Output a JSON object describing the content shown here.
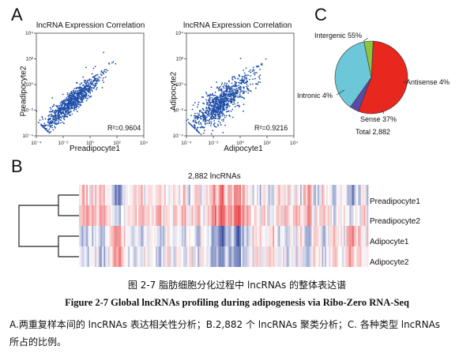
{
  "figure": {
    "panel_a": "A",
    "panel_b": "B",
    "panel_c": "C",
    "caption_title_cn": "图 2-7 脂肪细胞分化过程中 lncRNAs 的整体表达谱",
    "caption_title_en": "Figure 2-7 Global lncRNAs profiling during adipogenesis via Ribo-Zero RNA-Seq",
    "caption_body_line1": "A.两重复样本间的 lncRNAs 表达相关性分析；B.2,882 个 lncRNAs 聚类分析；C. 各种类型 lncRNAs",
    "caption_body_line2": "所占的比例。"
  },
  "chart_data": [
    {
      "type": "scatter",
      "title": "lncRNA Expression Correlation",
      "xlabel": "Preadipocyte1",
      "ylabel": "Preadipocyte2",
      "x_scale": "log",
      "y_scale": "log",
      "xlim": [
        0.0001,
        10000
      ],
      "ylim": [
        0.0001,
        10000
      ],
      "x_ticks": [
        "10⁻⁴",
        "10⁻²",
        "10⁰",
        "10²",
        "10⁴"
      ],
      "y_ticks": [
        "10⁻⁴",
        "10⁻²",
        "10⁰",
        "10²",
        "10⁴"
      ],
      "annotation": "R²=0.9604",
      "r2": 0.9604,
      "color": "#1f4fa8"
    },
    {
      "type": "scatter",
      "title": "lncRNA Expression Correlation",
      "xlabel": "Adipocyte1",
      "ylabel": "Adipocyte2",
      "x_scale": "log",
      "y_scale": "log",
      "xlim": [
        0.0001,
        10000
      ],
      "ylim": [
        0.0001,
        10000
      ],
      "x_ticks": [
        "10⁻⁴",
        "10⁻²",
        "10⁰",
        "10²",
        "10⁴"
      ],
      "y_ticks": [
        "10⁻⁴",
        "10⁻²",
        "10⁰",
        "10²",
        "10⁴"
      ],
      "annotation": "R²=0.9216",
      "r2": 0.9216,
      "color": "#1f4fa8"
    },
    {
      "type": "heatmap",
      "title": "2,882 lncRNAs",
      "rows": [
        "Preadipocyte1",
        "Preadipocyte2",
        "Adipocyte1",
        "Adipocyte2"
      ],
      "dendrogram": [
        [
          "Preadipocyte1",
          "Preadipocyte2"
        ],
        [
          "Adipocyte1",
          "Adipocyte2"
        ]
      ],
      "color_low": "#3b4fa0",
      "color_mid": "#ffffff",
      "color_high": "#e8484a"
    },
    {
      "type": "pie",
      "slices": [
        {
          "label": "Intergenic 55%",
          "value": 55,
          "color": "#e8271e"
        },
        {
          "label": "Antisense 4%",
          "value": 4,
          "color": "#5a4aa8"
        },
        {
          "label": "Sense 37%",
          "value": 37,
          "color": "#6cc7d8"
        },
        {
          "label": "Intronic 4%",
          "value": 4,
          "color": "#8cc63e"
        }
      ],
      "total": "Total 2,882"
    }
  ]
}
